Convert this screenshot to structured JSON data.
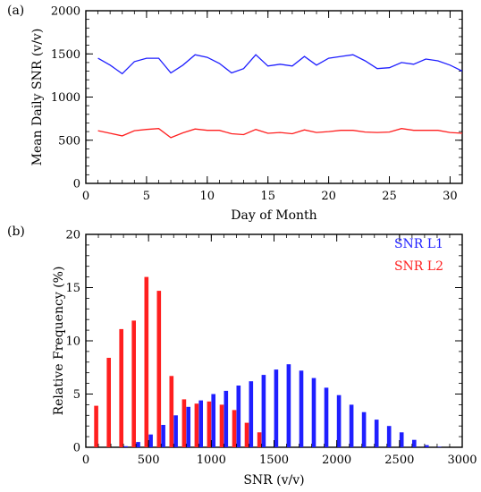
{
  "chart_data": [
    {
      "panel_label": "(a)",
      "type": "line",
      "xlabel": "Day of Month",
      "ylabel": "Mean Daily SNR (v/v)",
      "xlim": [
        0,
        31
      ],
      "ylim": [
        0,
        2000
      ],
      "xticks": [
        0,
        5,
        10,
        15,
        20,
        25,
        30
      ],
      "yticks": [
        0,
        500,
        1000,
        1500,
        2000
      ],
      "grid": false,
      "x": [
        1,
        2,
        3,
        4,
        5,
        6,
        7,
        8,
        9,
        10,
        11,
        12,
        13,
        14,
        15,
        16,
        17,
        18,
        19,
        20,
        21,
        22,
        23,
        24,
        25,
        26,
        27,
        28,
        29,
        30,
        31
      ],
      "series": [
        {
          "color": "#1f1fff",
          "values": [
            1450,
            1370,
            1270,
            1410,
            1450,
            1450,
            1280,
            1370,
            1490,
            1460,
            1390,
            1280,
            1330,
            1490,
            1360,
            1380,
            1360,
            1470,
            1370,
            1450,
            1470,
            1490,
            1420,
            1330,
            1340,
            1400,
            1380,
            1440,
            1420,
            1370,
            1300
          ]
        },
        {
          "color": "#ff1f1f",
          "values": [
            610,
            580,
            550,
            610,
            625,
            635,
            530,
            585,
            630,
            615,
            615,
            575,
            565,
            625,
            580,
            590,
            575,
            620,
            590,
            600,
            615,
            615,
            595,
            590,
            595,
            635,
            615,
            615,
            615,
            590,
            580
          ]
        }
      ]
    },
    {
      "panel_label": "(b)",
      "type": "bar",
      "xlabel": "SNR (v/v)",
      "ylabel": "Relative Frequency (%)",
      "xlim": [
        0,
        3000
      ],
      "ylim": [
        0,
        20
      ],
      "xticks": [
        0,
        500,
        1000,
        1500,
        2000,
        2500,
        3000
      ],
      "yticks": [
        0,
        5,
        10,
        15,
        20
      ],
      "grid": false,
      "legend_position": "top-right",
      "series": [
        {
          "name": "SNR L1",
          "color": "#1f1fff",
          "x": [
            300,
            400,
            500,
            600,
            700,
            800,
            900,
            1000,
            1100,
            1200,
            1300,
            1400,
            1500,
            1600,
            1700,
            1800,
            1900,
            2000,
            2100,
            2200,
            2300,
            2400,
            2500,
            2600,
            2700,
            2800
          ],
          "values": [
            0.1,
            0.5,
            1.2,
            2.1,
            3.0,
            3.8,
            4.4,
            5.0,
            5.3,
            5.8,
            6.2,
            6.8,
            7.3,
            7.8,
            7.2,
            6.5,
            5.6,
            4.9,
            4.0,
            3.3,
            2.6,
            2.0,
            1.4,
            0.7,
            0.2,
            0.05
          ]
        },
        {
          "name": "SNR L2",
          "color": "#ff1f1f",
          "x": [
            100,
            200,
            300,
            400,
            500,
            600,
            700,
            800,
            900,
            1000,
            1100,
            1200,
            1300,
            1400
          ],
          "values": [
            3.9,
            8.4,
            11.1,
            11.9,
            16.0,
            14.7,
            6.7,
            4.5,
            4.1,
            4.3,
            4.0,
            3.5,
            2.3,
            1.4
          ]
        }
      ]
    }
  ]
}
